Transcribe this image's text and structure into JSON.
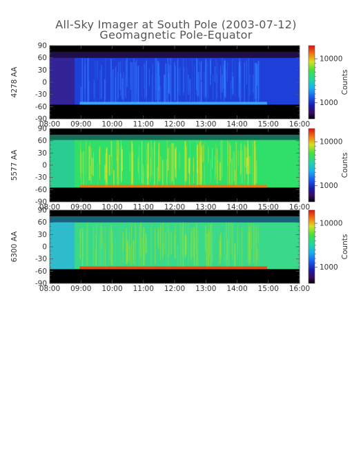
{
  "figure": {
    "title": "All-Sky Imager at South Pole (2003-07-12)",
    "subtitle": "Geomagnetic Pole-Equator"
  },
  "chart_data": [
    {
      "type": "heatmap",
      "ylabel": "4278 AA",
      "colorbar_label": "Counts",
      "colorbar_ticks": [
        "10000",
        "1000"
      ],
      "x_ticks": [
        "08:00",
        "09:00",
        "10:00",
        "11:00",
        "12:00",
        "13:00",
        "14:00",
        "15:00",
        "16:00"
      ],
      "y_ticks": [
        "90",
        "60",
        "30",
        "0",
        "-30",
        "-60",
        "-90"
      ],
      "xlim": [
        "08:00",
        "16:00"
      ],
      "ylim": [
        -90,
        90
      ],
      "data_band": [
        -55,
        60
      ],
      "colors": {
        "bg": "#3a1a82",
        "band": "#1e40d8",
        "streak": "#2f7dff",
        "edge": "#3fb0ff"
      }
    },
    {
      "type": "heatmap",
      "ylabel": "5577 AA",
      "colorbar_label": "Counts",
      "colorbar_ticks": [
        "10000",
        "1000"
      ],
      "x_ticks": [
        "08:00",
        "09:00",
        "10:00",
        "11:00",
        "12:00",
        "13:00",
        "14:00",
        "15:00",
        "16:00"
      ],
      "y_ticks": [
        "90",
        "60",
        "30",
        "0",
        "-30",
        "-60",
        "-90"
      ],
      "xlim": [
        "08:00",
        "16:00"
      ],
      "ylim": [
        -90,
        90
      ],
      "data_band": [
        -55,
        62
      ],
      "colors": {
        "bg": "#2bc6a0",
        "band": "#2fdf6a",
        "streak": "#e8e020",
        "edge": "#f07a10"
      }
    },
    {
      "type": "heatmap",
      "ylabel": "6300 AA",
      "colorbar_label": "Counts",
      "colorbar_ticks": [
        "10000",
        "1000"
      ],
      "x_ticks": [
        "08:00",
        "09:00",
        "10:00",
        "11:00",
        "12:00",
        "13:00",
        "14:00",
        "15:00",
        "16:00"
      ],
      "y_ticks": [
        "90",
        "60",
        "30",
        "0",
        "-30",
        "-60",
        "-90"
      ],
      "xlim": [
        "08:00",
        "16:00"
      ],
      "ylim": [
        -90,
        90
      ],
      "data_band": [
        -55,
        60
      ],
      "colors": {
        "bg": "#2bb0e0",
        "band": "#3ad98a",
        "streak": "#8ee03a",
        "edge": "#f04010"
      }
    }
  ]
}
